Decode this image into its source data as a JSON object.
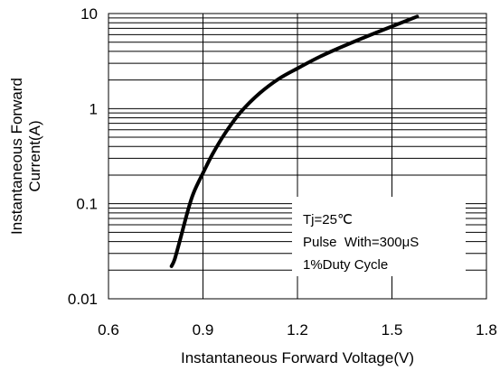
{
  "chart_data": {
    "type": "line",
    "xlabel": "Instantaneous Forward Voltage(V)",
    "ylabel": [
      "Instantaneous Forward",
      "Current(A)"
    ],
    "xlim": [
      0.6,
      1.8
    ],
    "ylim": [
      0.01,
      10
    ],
    "yscale": "log",
    "grid": true,
    "x_ticks": [
      "0.6",
      "0.9",
      "1.2",
      "1.5",
      "1.8"
    ],
    "y_ticks": [
      "0.01",
      "0.1",
      "1",
      "10"
    ],
    "annotations": [
      "Tj=25℃",
      "Pulse  With=300μS",
      "1%Duty Cycle"
    ],
    "series": [
      {
        "x": [
          0.8,
          0.81,
          0.83,
          0.85,
          0.87,
          0.9,
          0.93,
          0.97,
          1.02,
          1.08,
          1.14,
          1.2,
          1.27,
          1.35,
          1.45,
          1.58
        ],
        "y": [
          0.022,
          0.026,
          0.045,
          0.08,
          0.13,
          0.21,
          0.33,
          0.55,
          0.92,
          1.45,
          2.05,
          2.65,
          3.5,
          4.6,
          6.3,
          9.3
        ],
        "color": "#000000"
      }
    ]
  }
}
